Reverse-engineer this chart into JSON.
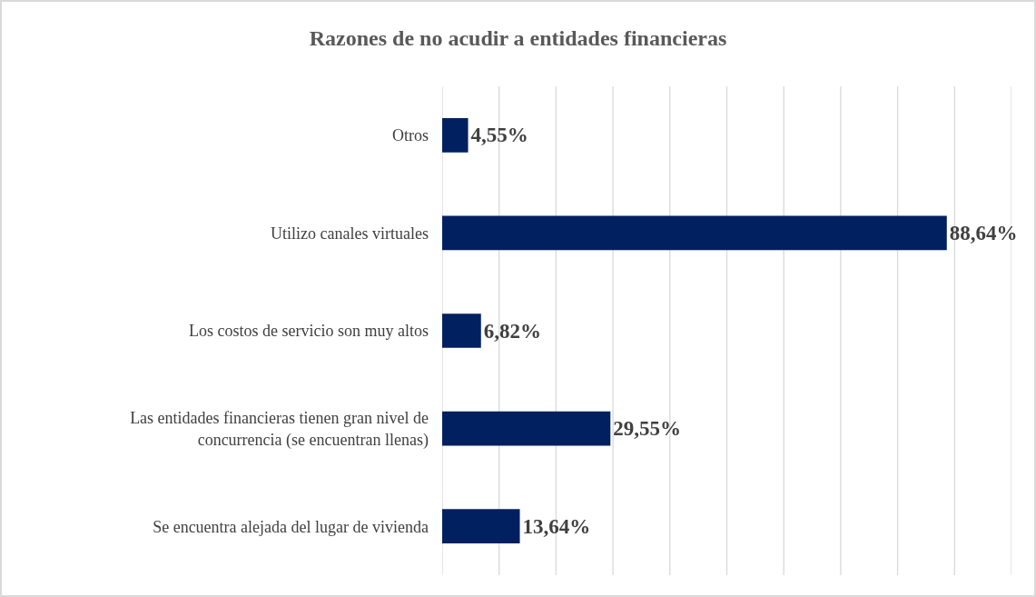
{
  "chart_data": {
    "type": "bar",
    "orientation": "horizontal",
    "title": "Razones de no acudir a entidades financieras",
    "categories": [
      "Otros",
      "Utilizo canales virtuales",
      "Los costos de servicio son muy altos",
      "Las entidades financieras tienen gran nivel de concurrencia (se encuentran llenas)",
      "Se encuentra alejada del lugar de vivienda"
    ],
    "values": [
      4.55,
      88.64,
      6.82,
      29.55,
      13.64
    ],
    "value_labels": [
      "4,55%",
      "88,64%",
      "6,82%",
      "29,55%",
      "13,64%"
    ],
    "color": "#002060",
    "xlim": [
      0,
      100
    ],
    "xticks": [
      {
        "value": 0,
        "label": null
      },
      {
        "value": 10,
        "label": null
      },
      {
        "value": 20,
        "label": null
      },
      {
        "value": 30,
        "label": null
      },
      {
        "value": 40,
        "label": null
      },
      {
        "value": 50,
        "label": null
      },
      {
        "value": 60,
        "label": null
      },
      {
        "value": 70,
        "label": null
      },
      {
        "value": 80,
        "label": null
      },
      {
        "value": 90,
        "label": null
      },
      {
        "value": 100,
        "label": null
      }
    ],
    "grid": "x",
    "tick_labels": "y"
  }
}
